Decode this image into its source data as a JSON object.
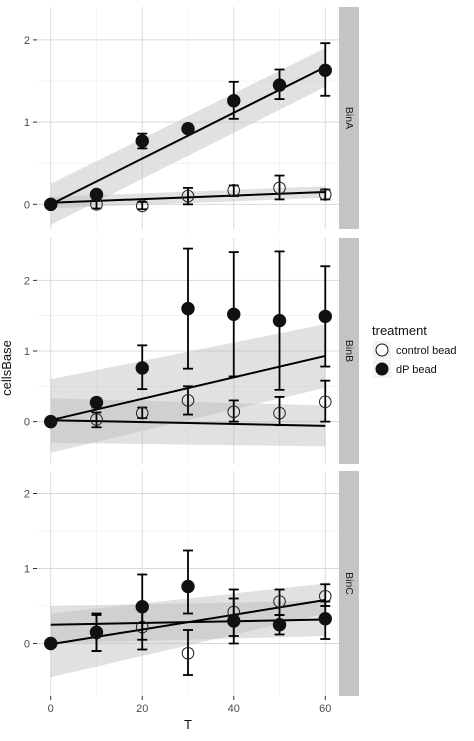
{
  "chart_data": {
    "type": "scatter",
    "title": "",
    "xlabel": "T",
    "ylabel": "cellsBase",
    "xlim": [
      -3,
      63
    ],
    "x_ticks": [
      0,
      20,
      40,
      60
    ],
    "x_tick_labels": [
      "0",
      "20",
      "40",
      "60"
    ],
    "grid": true,
    "legend": {
      "title": "treatment",
      "position": "right",
      "entries": [
        {
          "label": "control bead",
          "marker": "open-circle"
        },
        {
          "label": "dP bead",
          "marker": "filled-circle"
        }
      ]
    },
    "colors": {
      "panel_background": "#ffffff",
      "grid_major": "#d9d9d9",
      "grid_minor": "#ececec",
      "strip_background": "#c4c4c4",
      "ribbon": "#bdbdbd",
      "ink": "#000000"
    },
    "facets": [
      {
        "label": "BinA",
        "ylim": [
          -0.3,
          2.4
        ],
        "y_ticks": [
          0,
          1,
          2
        ],
        "y_tick_labels": [
          "0",
          "1",
          "2"
        ],
        "series": [
          {
            "treatment": "control bead",
            "x": [
              0,
              10,
              20,
              30,
              40,
              50,
              60
            ],
            "y": [
              0.0,
              0.0,
              -0.02,
              0.1,
              0.17,
              0.2,
              0.12
            ],
            "err_low": [
              0.0,
              -0.05,
              -0.06,
              0.0,
              0.1,
              0.06,
              0.06
            ],
            "err_high": [
              0.0,
              0.06,
              0.03,
              0.2,
              0.23,
              0.35,
              0.18
            ],
            "fit": [
              0.02,
              0.15
            ],
            "band_low": [
              -0.05,
              0.08
            ],
            "band_high": [
              0.09,
              0.22
            ]
          },
          {
            "treatment": "dP bead",
            "x": [
              0,
              10,
              20,
              30,
              40,
              50,
              60
            ],
            "y": [
              0.0,
              0.12,
              0.77,
              0.92,
              1.26,
              1.45,
              1.63
            ],
            "err_low": [
              0.0,
              0.1,
              0.68,
              0.88,
              1.04,
              1.28,
              1.32
            ],
            "err_high": [
              0.0,
              0.14,
              0.86,
              0.97,
              1.49,
              1.64,
              1.96
            ],
            "fit": [
              0.0,
              1.67
            ],
            "band_low": [
              -0.25,
              1.43
            ],
            "band_high": [
              0.25,
              1.9
            ]
          }
        ]
      },
      {
        "label": "BinB",
        "ylim": [
          -0.6,
          2.6
        ],
        "y_ticks": [
          0,
          1,
          2
        ],
        "y_tick_labels": [
          "0",
          "1",
          "2"
        ],
        "series": [
          {
            "treatment": "control bead",
            "x": [
              0,
              10,
              20,
              30,
              40,
              50,
              60
            ],
            "y": [
              0.0,
              0.03,
              0.12,
              0.3,
              0.14,
              0.12,
              0.28
            ],
            "err_low": [
              0.0,
              -0.08,
              0.05,
              0.1,
              0.0,
              -0.05,
              0.0
            ],
            "err_high": [
              0.0,
              0.13,
              0.2,
              0.5,
              0.3,
              0.35,
              0.58
            ],
            "fit": [
              0.02,
              -0.06
            ],
            "band_low": [
              -0.3,
              -0.35
            ],
            "band_high": [
              0.33,
              0.23
            ]
          },
          {
            "treatment": "dP bead",
            "x": [
              0,
              10,
              20,
              30,
              40,
              50,
              60
            ],
            "y": [
              0.0,
              0.27,
              0.76,
              1.6,
              1.52,
              1.43,
              1.49
            ],
            "err_low": [
              0.0,
              0.2,
              0.46,
              0.75,
              0.64,
              0.45,
              0.78
            ],
            "err_high": [
              0.0,
              0.33,
              1.08,
              2.45,
              2.4,
              2.41,
              2.2
            ],
            "fit": [
              0.02,
              0.93
            ],
            "band_low": [
              -0.44,
              0.48
            ],
            "band_high": [
              0.6,
              1.38
            ]
          }
        ]
      },
      {
        "label": "BinC",
        "ylim": [
          -0.7,
          2.3
        ],
        "y_ticks": [
          0,
          1,
          2
        ],
        "y_tick_labels": [
          "0",
          "1",
          "2"
        ],
        "series": [
          {
            "treatment": "control bead",
            "x": [
              0,
              10,
              20,
              30,
              40,
              50,
              60
            ],
            "y": [
              0.0,
              0.14,
              0.22,
              -0.13,
              0.42,
              0.56,
              0.63
            ],
            "err_low": [
              0.0,
              -0.1,
              -0.08,
              -0.42,
              0.1,
              0.38,
              0.5
            ],
            "err_high": [
              0.0,
              0.38,
              0.47,
              0.18,
              0.72,
              0.72,
              0.79
            ],
            "fit": [
              -0.01,
              0.58
            ],
            "band_low": [
              -0.45,
              0.4
            ],
            "band_high": [
              0.4,
              0.8
            ]
          },
          {
            "treatment": "dP bead",
            "x": [
              0,
              10,
              20,
              30,
              40,
              50,
              60
            ],
            "y": [
              0.0,
              0.15,
              0.49,
              0.76,
              0.3,
              0.25,
              0.33
            ],
            "err_low": [
              0.0,
              -0.1,
              0.05,
              0.4,
              0.0,
              0.12,
              0.06
            ],
            "err_high": [
              0.0,
              0.4,
              0.92,
              1.24,
              0.6,
              0.38,
              0.56
            ],
            "fit": [
              0.25,
              0.32
            ],
            "band_low": [
              0.0,
              0.1
            ],
            "band_high": [
              0.5,
              0.57
            ]
          }
        ]
      }
    ]
  }
}
